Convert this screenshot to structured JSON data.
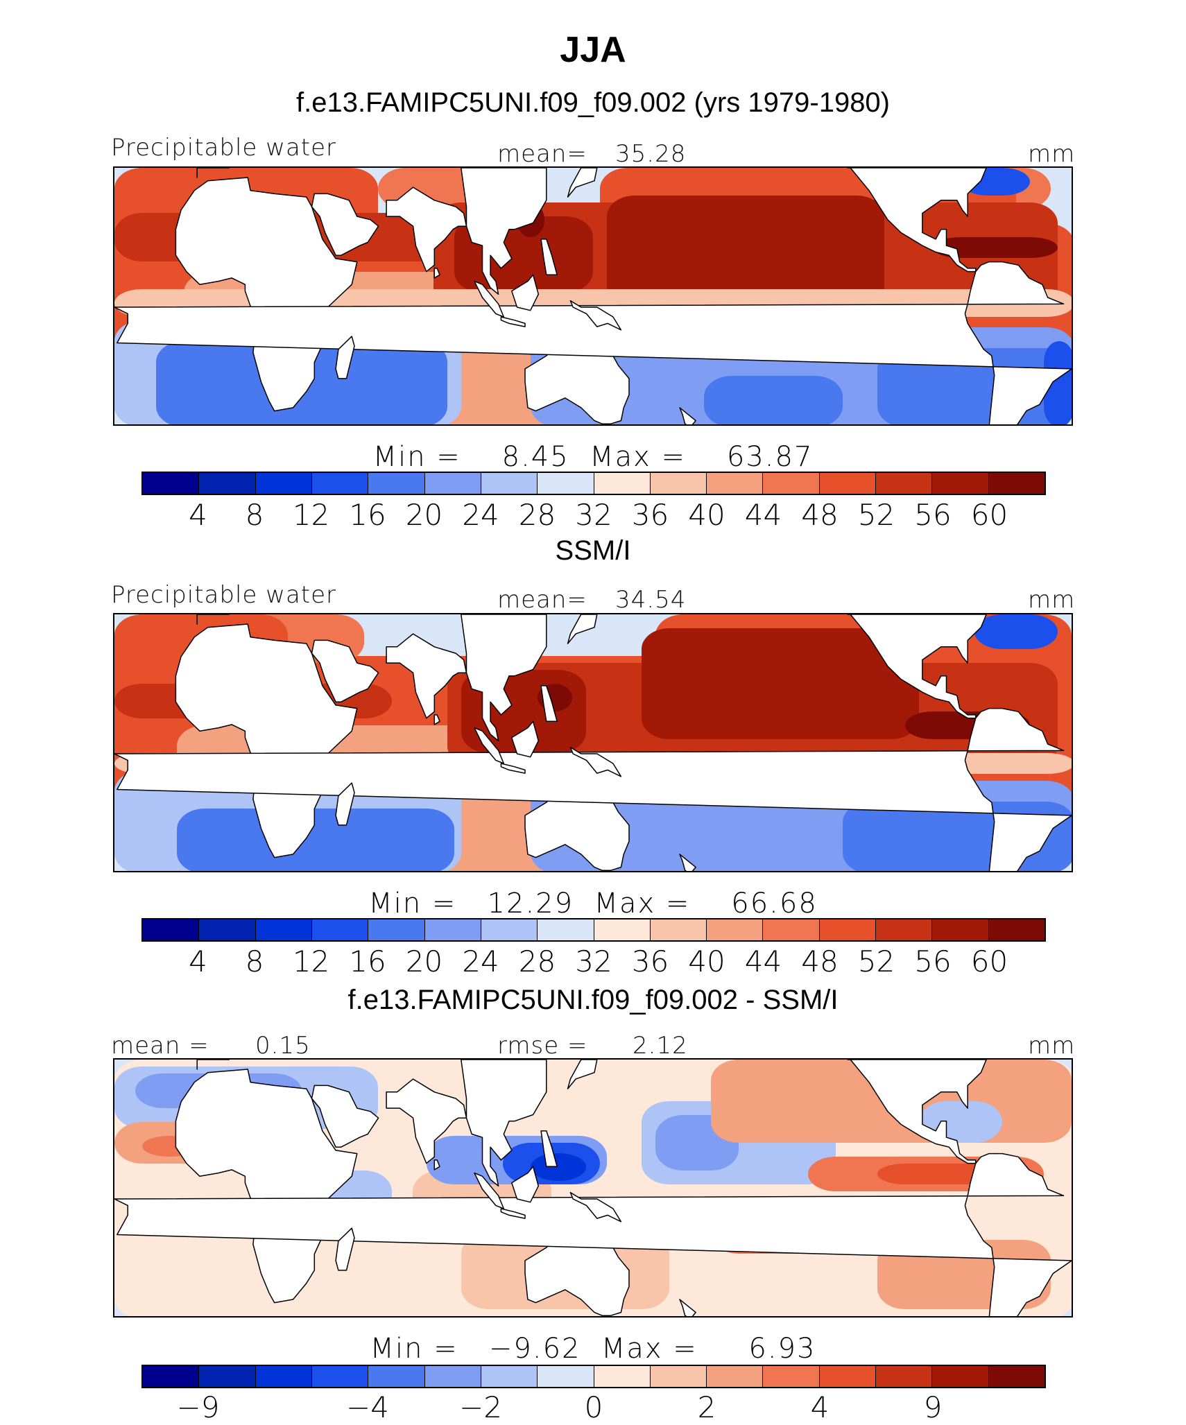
{
  "title": "JJA",
  "chart_data": [
    {
      "type": "heatmap",
      "title": "f.e13.FAMIPC5UNI.f09_f09.002 (yrs 1979-1980)",
      "variable": "Precipitable water",
      "mean_label": "mean=",
      "mean": "35.28",
      "units": "mm",
      "min_max_text": "Min =    8.45  Max =    63.87",
      "min": 8.45,
      "max": 63.87,
      "colorbar_ticks": [
        "4",
        "8",
        "12",
        "16",
        "20",
        "24",
        "28",
        "32",
        "36",
        "40",
        "44",
        "48",
        "52",
        "56",
        "60"
      ],
      "colors": [
        "#00008f",
        "#0022b0",
        "#0034d8",
        "#1c50ec",
        "#4a79ef",
        "#7f9ef3",
        "#aec4f6",
        "#d9e6f7",
        "#fde8d9",
        "#f8c5aa",
        "#f3a17f",
        "#ef7650",
        "#e6502a",
        "#c83214",
        "#a31908",
        "#7d0a05"
      ]
    },
    {
      "type": "heatmap",
      "title": "SSM/I",
      "variable": "Precipitable water",
      "mean_label": "mean=",
      "mean": "34.54",
      "units": "mm",
      "min_max_text": "Min =   12.29  Max =    66.68",
      "min": 12.29,
      "max": 66.68,
      "colorbar_ticks": [
        "4",
        "8",
        "12",
        "16",
        "20",
        "24",
        "28",
        "32",
        "36",
        "40",
        "44",
        "48",
        "52",
        "56",
        "60"
      ],
      "colors": [
        "#00008f",
        "#0022b0",
        "#0034d8",
        "#1c50ec",
        "#4a79ef",
        "#7f9ef3",
        "#aec4f6",
        "#d9e6f7",
        "#fde8d9",
        "#f8c5aa",
        "#f3a17f",
        "#ef7650",
        "#e6502a",
        "#c83214",
        "#a31908",
        "#7d0a05"
      ]
    },
    {
      "type": "heatmap",
      "title": "f.e13.FAMIPC5UNI.f09_f09.002 - SSM/I",
      "mean_label": "mean =",
      "mean": "0.15",
      "rmse_label": "rmse =",
      "rmse": "2.12",
      "units": "mm",
      "min_max_text": "Min =   −9.62  Max =     6.93",
      "min": -9.62,
      "max": 6.93,
      "colorbar_ticks": [
        "−9",
        "−4",
        "−2",
        "0",
        "2",
        "4",
        "9"
      ],
      "colors": [
        "#00008f",
        "#0022b0",
        "#0034d8",
        "#1c50ec",
        "#4a79ef",
        "#7f9ef3",
        "#aec4f6",
        "#d9e6f7",
        "#fde8d9",
        "#f8c5aa",
        "#f3a17f",
        "#ef7650",
        "#e6502a",
        "#c83214",
        "#a31908",
        "#7d0a05"
      ]
    }
  ]
}
